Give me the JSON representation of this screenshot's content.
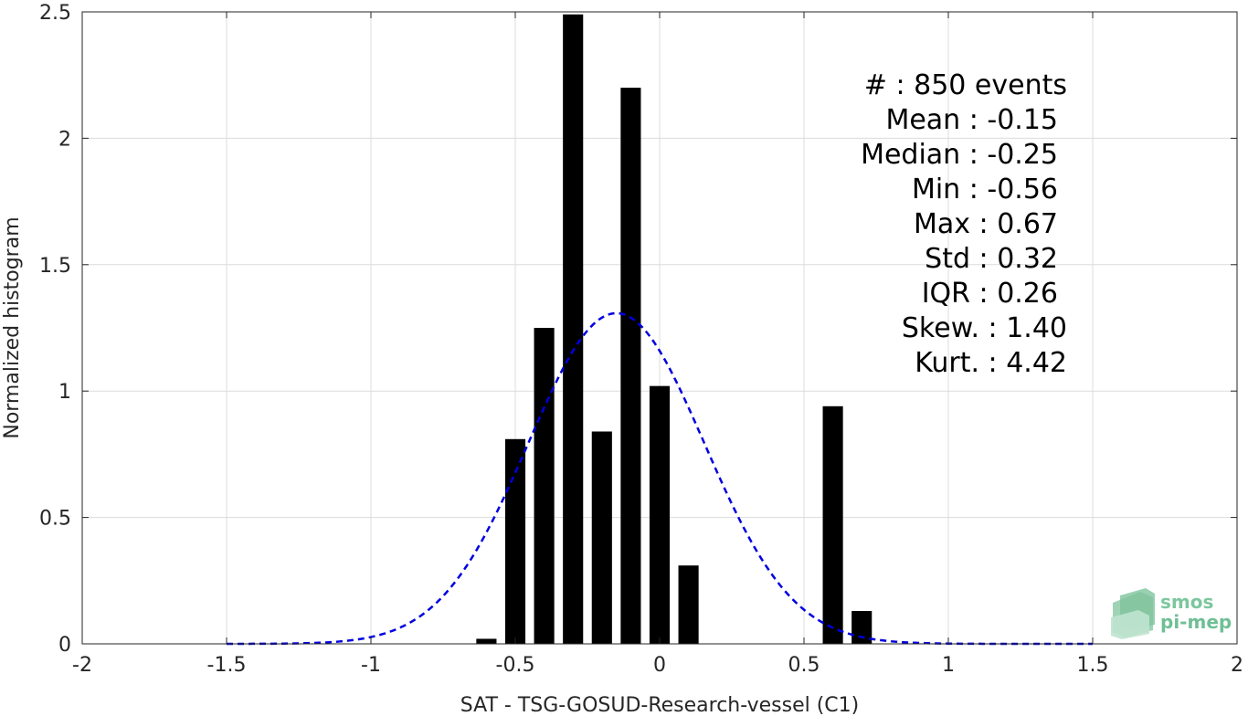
{
  "chart_data": {
    "type": "bar",
    "xlabel": "SAT - TSG-GOSUD-Research-vessel (C1)",
    "ylabel": "Normalized histogram",
    "xlim": [
      -2,
      2
    ],
    "ylim": [
      0,
      2.5
    ],
    "xticks": [
      -2,
      -1.5,
      -1,
      -0.5,
      0,
      0.5,
      1,
      1.5,
      2
    ],
    "xtick_labels": [
      "-2",
      "-1.5",
      "-1",
      "-0.5",
      "0",
      "0.5",
      "1",
      "1.5",
      "2"
    ],
    "yticks": [
      0,
      0.5,
      1,
      1.5,
      2,
      2.5
    ],
    "ytick_labels": [
      "0",
      "0.5",
      "1",
      "1.5",
      "2",
      "2.5"
    ],
    "grid": true,
    "bar_width": 0.07,
    "bars": {
      "x": [
        -0.6,
        -0.5,
        -0.4,
        -0.3,
        -0.2,
        -0.1,
        0.0,
        0.1,
        0.6,
        0.7
      ],
      "values": [
        0.02,
        0.81,
        1.25,
        2.49,
        0.84,
        2.2,
        1.02,
        0.31,
        0.94,
        0.13
      ]
    },
    "fit_curve": {
      "style": "dashed",
      "mean": -0.15,
      "std": 0.305,
      "x_range": [
        -1.5,
        1.5
      ]
    },
    "colors": {
      "bars": "#000000",
      "fit_curve": "#0000e0",
      "grid": "#dcdcdc",
      "axes": "#262626"
    },
    "stats": [
      {
        "label": "#  : 850 events",
        "anchor": "1168"
      },
      {
        "label": "Mean : -0.15",
        "anchor": "1158"
      },
      {
        "label": "Median : -0.25",
        "anchor": "1158"
      },
      {
        "label": "Min : -0.56",
        "anchor": "1158"
      },
      {
        "label": "Max : 0.67",
        "anchor": "1158"
      },
      {
        "label": "Std : 0.32",
        "anchor": "1158"
      },
      {
        "label": "IQR : 0.26",
        "anchor": "1158"
      },
      {
        "label": "Skew. : 1.40",
        "anchor": "1168"
      },
      {
        "label": "Kurt. : 4.42",
        "anchor": "1168"
      }
    ]
  },
  "logo": {
    "line1": "smos",
    "line2": "pi-mep"
  }
}
